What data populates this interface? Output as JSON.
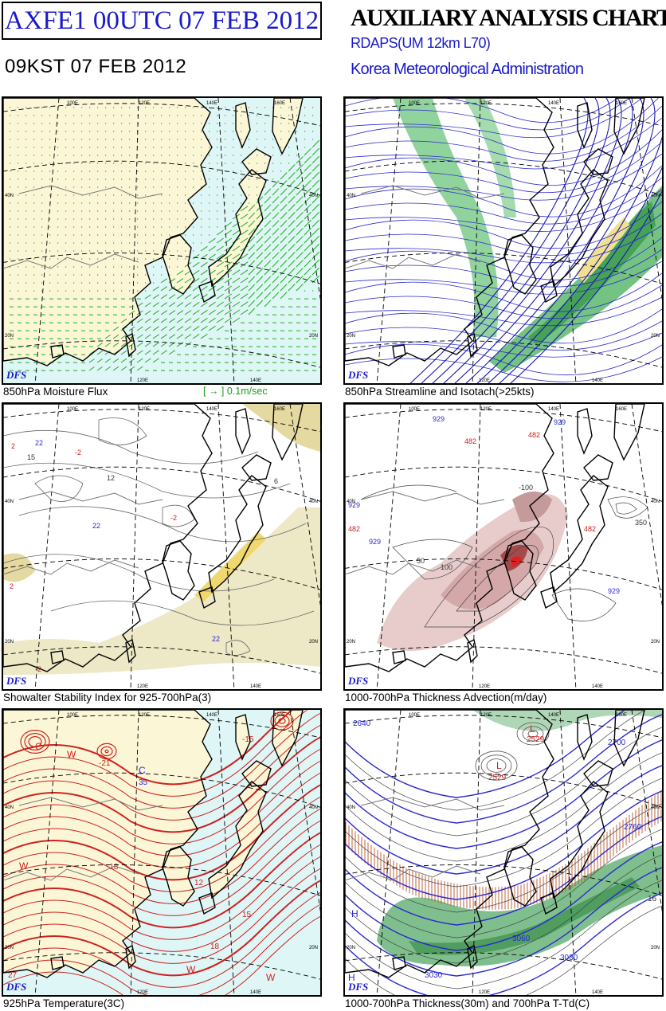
{
  "header": {
    "run_id": "AXFE1  00UTC 07 FEB 2012",
    "valid_time": "09KST 07 FEB 2012",
    "title": "AUXILIARY ANALYSIS CHART I",
    "model": "RDAPS(UM 12km L70)",
    "organization": "Korea Meteorological Administration"
  },
  "panels": [
    {
      "caption": "850hPa Moisture Flux",
      "badge": "DFS",
      "legend": "[  →  ] 0.1m/sec"
    },
    {
      "caption": "850hPa Streamline and Isotach(>25kts)",
      "badge": "DFS"
    },
    {
      "caption": "Showalter Stability Index for 925-700hPa(3)",
      "badge": "DFS"
    },
    {
      "caption": "1000-700hPa Thickness Advection(m/day)",
      "badge": "DFS"
    },
    {
      "caption": "925hPa Temperature(3C)",
      "badge": "DFS"
    },
    {
      "caption": "1000-700hPa Thickness(30m) and 700hPa T-Td(C)",
      "badge": "DFS"
    }
  ],
  "grid_labels": {
    "lon": [
      "100E",
      "120E",
      "140E",
      "160E"
    ],
    "lat": [
      "40N",
      "20N"
    ]
  },
  "panel_labels": {
    "p3": [
      "2",
      "-2",
      "22",
      "12",
      "15",
      "6",
      "-2",
      "22",
      "2",
      "-2",
      "22"
    ],
    "p4": [
      "929",
      "482",
      "929",
      "482",
      "-100",
      "929",
      "482",
      "929",
      "50",
      "100",
      "482",
      "929",
      "350"
    ],
    "p5": [
      "C",
      "W",
      "-21",
      "-15",
      "C",
      "35",
      "W",
      "-18",
      "12",
      "15",
      "18",
      "W",
      "W",
      "27"
    ],
    "p6": [
      "L",
      "2529",
      "L",
      "2529",
      "2640",
      "2700",
      "2760",
      "H",
      "3060",
      "3030",
      "H",
      "3030",
      "16"
    ]
  },
  "colors": {
    "header_blue": "#1a1acc",
    "land_cream": "#fbf7d6",
    "sea_cyan": "#dff6f6",
    "flux_green": "#22aa22",
    "stream_blue": "#2a2ad0",
    "isotach_green": "#3faa50",
    "contour_red": "#d02020",
    "thickness_advection_brown": "#a54a4a",
    "hatch_brown": "#b8542a"
  }
}
